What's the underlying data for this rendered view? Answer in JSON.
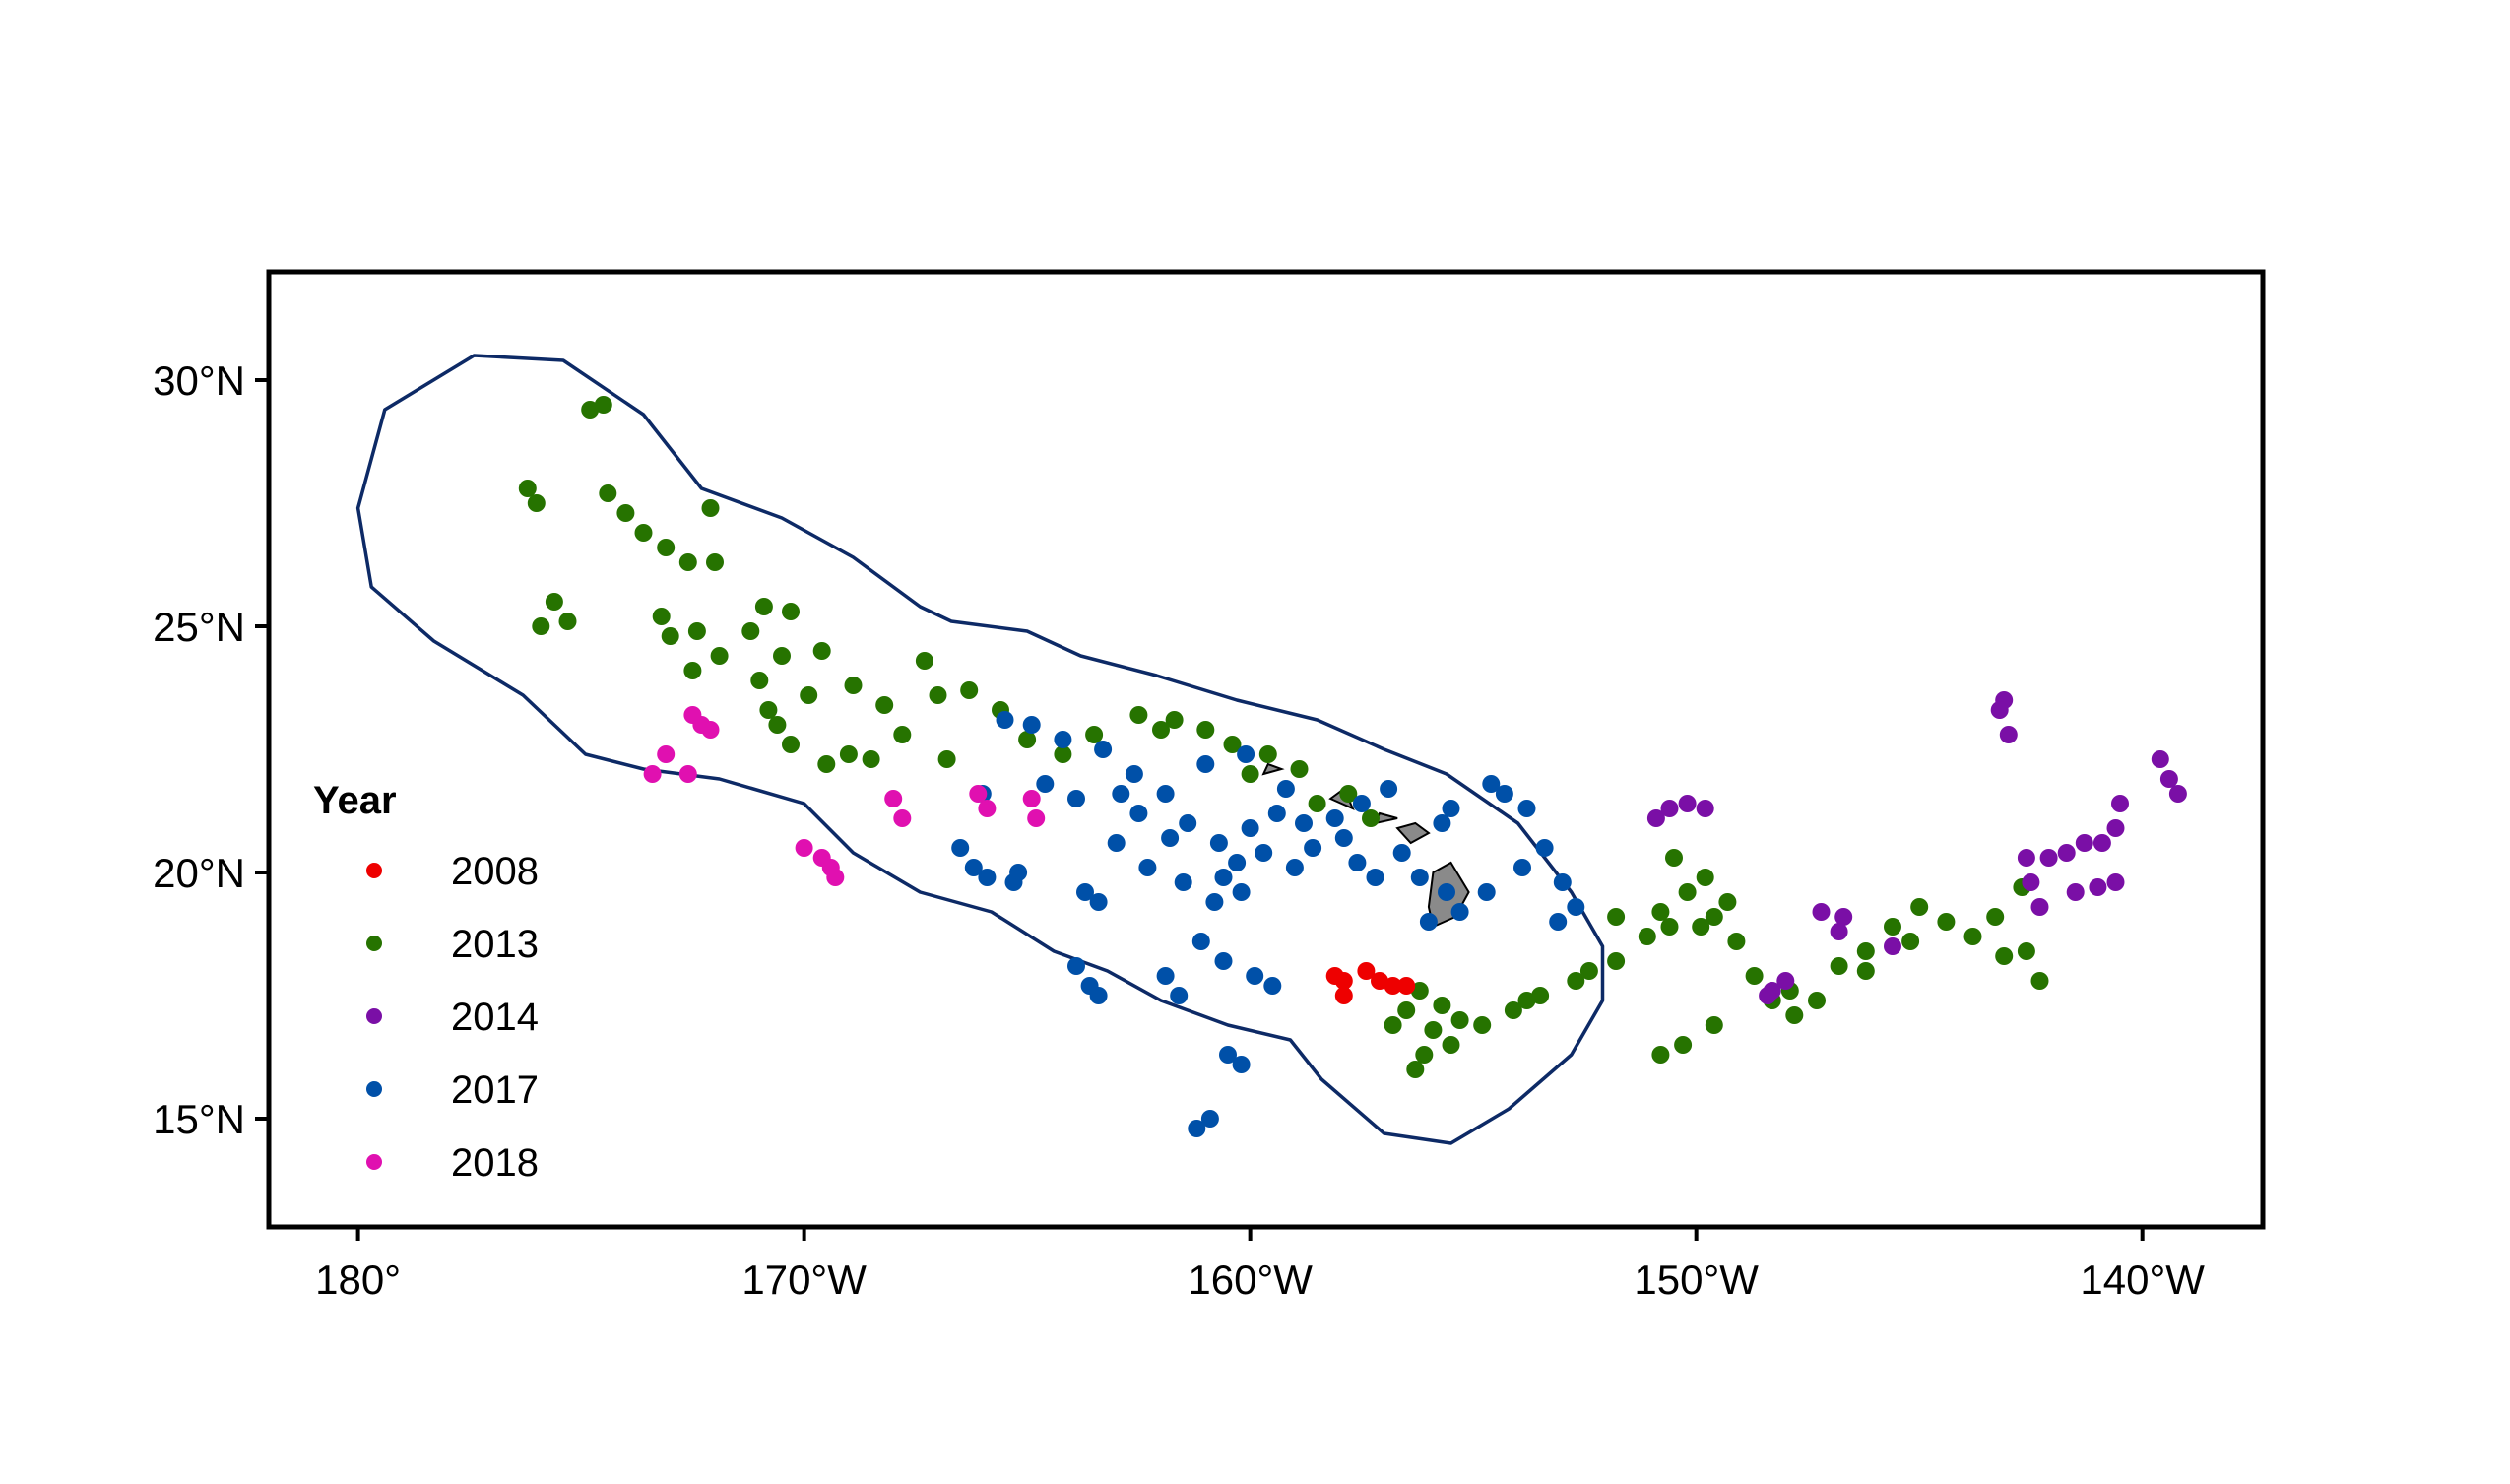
{
  "chart_data": {
    "type": "scatter",
    "x_ticks": [
      "180°",
      "170°W",
      "160°W",
      "150°W",
      "140°W"
    ],
    "x_tick_values": [
      -180,
      -170,
      -160,
      -150,
      -140
    ],
    "y_ticks": [
      "30°N",
      "25°N",
      "20°N",
      "15°N"
    ],
    "y_tick_values": [
      30,
      25,
      20,
      15
    ],
    "xlim": [
      -182,
      -137.3
    ],
    "ylim": [
      12.8,
      32.2
    ],
    "legend": {
      "title": "Year",
      "placement": "left"
    },
    "colors": {
      "2008": "#ee0000",
      "2013": "#267300",
      "2014": "#7a0fa6",
      "2017": "#0050a8",
      "2018": "#e010b0",
      "boundary": "#0d2a66",
      "island": "#8a8a8a"
    },
    "boundary": [
      [
        -180,
        27.4
      ],
      [
        -179.4,
        29.4
      ],
      [
        -177.4,
        30.5
      ],
      [
        -175.4,
        30.4
      ],
      [
        -173.6,
        29.3
      ],
      [
        -172.3,
        27.8
      ],
      [
        -170.5,
        27.2
      ],
      [
        -168.9,
        26.4
      ],
      [
        -167.4,
        25.4
      ],
      [
        -166.7,
        25.1
      ],
      [
        -165.0,
        24.9
      ],
      [
        -163.8,
        24.4
      ],
      [
        -162.1,
        24.0
      ],
      [
        -160.3,
        23.5
      ],
      [
        -158.5,
        23.1
      ],
      [
        -157.0,
        22.5
      ],
      [
        -155.6,
        22.0
      ],
      [
        -154.0,
        21.0
      ],
      [
        -152.8,
        19.6
      ],
      [
        -152.1,
        18.5
      ],
      [
        -152.1,
        17.4
      ],
      [
        -152.8,
        16.3
      ],
      [
        -154.2,
        15.2
      ],
      [
        -155.5,
        14.5
      ],
      [
        -157.0,
        14.7
      ],
      [
        -158.4,
        15.8
      ],
      [
        -159.1,
        16.6
      ],
      [
        -160.5,
        16.9
      ],
      [
        -162.0,
        17.4
      ],
      [
        -163.2,
        18.0
      ],
      [
        -164.4,
        18.4
      ],
      [
        -165.8,
        19.2
      ],
      [
        -167.4,
        19.6
      ],
      [
        -168.9,
        20.4
      ],
      [
        -170.0,
        21.4
      ],
      [
        -171.9,
        21.9
      ],
      [
        -173.6,
        22.1
      ],
      [
        -174.9,
        22.4
      ],
      [
        -176.3,
        23.6
      ],
      [
        -178.3,
        24.7
      ],
      [
        -179.7,
        25.8
      ],
      [
        -180,
        27.4
      ]
    ],
    "islands": [
      [
        [
          -155.9,
          18.9
        ],
        [
          -155.4,
          19.1
        ],
        [
          -155.1,
          19.6
        ],
        [
          -155.5,
          20.2
        ],
        [
          -155.9,
          20.0
        ],
        [
          -156.0,
          19.3
        ],
        [
          -155.9,
          18.9
        ]
      ],
      [
        [
          -156.4,
          20.6
        ],
        [
          -156.0,
          20.8
        ],
        [
          -156.3,
          21.0
        ],
        [
          -156.7,
          20.9
        ],
        [
          -156.4,
          20.6
        ]
      ],
      [
        [
          -157.2,
          21.0
        ],
        [
          -156.7,
          21.1
        ],
        [
          -157.1,
          21.2
        ],
        [
          -157.2,
          21.0
        ]
      ],
      [
        [
          -158.2,
          21.5
        ],
        [
          -157.7,
          21.3
        ],
        [
          -157.9,
          21.7
        ],
        [
          -158.2,
          21.5
        ]
      ],
      [
        [
          -159.7,
          22.0
        ],
        [
          -159.3,
          22.1
        ],
        [
          -159.6,
          22.2
        ],
        [
          -159.7,
          22.0
        ]
      ]
    ],
    "series": [
      {
        "name": "2008",
        "points": [
          [
            -157.9,
            17.8
          ],
          [
            -157.9,
            17.5
          ],
          [
            -157.4,
            18.0
          ],
          [
            -157.1,
            17.8
          ],
          [
            -156.8,
            17.7
          ],
          [
            -156.5,
            17.7
          ],
          [
            -158.1,
            17.9
          ]
        ]
      },
      {
        "name": "2013",
        "points": [
          [
            -174.8,
            29.4
          ],
          [
            -174.5,
            29.5
          ],
          [
            -176.2,
            27.8
          ],
          [
            -176.0,
            27.5
          ],
          [
            -174.4,
            27.7
          ],
          [
            -174.0,
            27.3
          ],
          [
            -172.1,
            27.4
          ],
          [
            -173.1,
            26.6
          ],
          [
            -172.6,
            26.3
          ],
          [
            -172.0,
            26.3
          ],
          [
            -173.2,
            25.2
          ],
          [
            -172.4,
            24.9
          ],
          [
            -171.9,
            24.4
          ],
          [
            -170.9,
            25.4
          ],
          [
            -170.3,
            25.3
          ],
          [
            -170.5,
            24.4
          ],
          [
            -171.0,
            23.9
          ],
          [
            -170.8,
            23.3
          ],
          [
            -170.3,
            22.6
          ],
          [
            -169.5,
            22.2
          ],
          [
            -169.0,
            22.4
          ],
          [
            -168.5,
            22.3
          ],
          [
            -167.8,
            22.8
          ],
          [
            -167.0,
            23.6
          ],
          [
            -166.3,
            23.7
          ],
          [
            -165.6,
            23.3
          ],
          [
            -165.0,
            22.7
          ],
          [
            -164.2,
            22.4
          ],
          [
            -163.5,
            22.8
          ],
          [
            -162.5,
            23.2
          ],
          [
            -161.7,
            23.1
          ],
          [
            -161.0,
            22.9
          ],
          [
            -160.4,
            22.6
          ],
          [
            -159.6,
            22.4
          ],
          [
            -158.9,
            22.1
          ],
          [
            -158.5,
            21.4
          ],
          [
            -157.8,
            21.6
          ],
          [
            -157.3,
            21.1
          ],
          [
            -175.9,
            25.0
          ],
          [
            -175.6,
            25.5
          ],
          [
            -173.0,
            24.8
          ],
          [
            -168.9,
            23.8
          ],
          [
            -168.2,
            23.4
          ],
          [
            -167.3,
            24.3
          ],
          [
            -169.6,
            24.5
          ],
          [
            -170.6,
            23.0
          ],
          [
            -169.9,
            23.6
          ],
          [
            -166.8,
            22.3
          ],
          [
            -156.1,
            16.3
          ],
          [
            -155.9,
            16.8
          ],
          [
            -156.5,
            17.2
          ],
          [
            -156.8,
            16.9
          ],
          [
            -155.7,
            17.3
          ],
          [
            -154.8,
            16.9
          ],
          [
            -154.1,
            17.2
          ],
          [
            -153.5,
            17.5
          ],
          [
            -152.7,
            17.8
          ],
          [
            -151.8,
            18.2
          ],
          [
            -151.1,
            18.7
          ],
          [
            -150.8,
            19.2
          ],
          [
            -150.2,
            19.6
          ],
          [
            -150.5,
            20.3
          ],
          [
            -149.8,
            19.9
          ],
          [
            -149.3,
            19.4
          ],
          [
            -149.9,
            18.9
          ],
          [
            -149.1,
            18.6
          ],
          [
            -148.7,
            17.9
          ],
          [
            -148.3,
            17.4
          ],
          [
            -147.8,
            17.1
          ],
          [
            -147.3,
            17.4
          ],
          [
            -146.8,
            18.1
          ],
          [
            -146.2,
            18.4
          ],
          [
            -145.6,
            18.9
          ],
          [
            -145.0,
            19.3
          ],
          [
            -144.4,
            19.0
          ],
          [
            -143.8,
            18.7
          ],
          [
            -143.3,
            19.1
          ],
          [
            -142.7,
            19.7
          ],
          [
            -142.3,
            17.8
          ],
          [
            -142.6,
            18.4
          ],
          [
            -143.1,
            18.3
          ],
          [
            -150.3,
            16.5
          ],
          [
            -150.8,
            16.3
          ],
          [
            -149.6,
            16.9
          ],
          [
            -151.8,
            19.1
          ],
          [
            -150.6,
            18.9
          ],
          [
            -156.2,
            17.6
          ],
          [
            -155.5,
            16.5
          ],
          [
            -156.3,
            16.0
          ],
          [
            -155.3,
            17.0
          ],
          [
            -152.4,
            18.0
          ],
          [
            -153.8,
            17.4
          ],
          [
            -149.6,
            19.1
          ],
          [
            -146.2,
            18.0
          ],
          [
            -145.2,
            18.6
          ],
          [
            -147.9,
            17.6
          ],
          [
            -172.5,
            24.1
          ],
          [
            -173.6,
            26.9
          ],
          [
            -175.3,
            25.1
          ],
          [
            -171.2,
            24.9
          ],
          [
            -162.0,
            22.9
          ],
          [
            -160.0,
            22.0
          ]
        ]
      },
      {
        "name": "2014",
        "points": [
          [
            -143.1,
            23.5
          ],
          [
            -143.2,
            23.3
          ],
          [
            -143.0,
            22.8
          ],
          [
            -139.6,
            22.3
          ],
          [
            -139.4,
            21.9
          ],
          [
            -139.2,
            21.6
          ],
          [
            -140.5,
            21.4
          ],
          [
            -140.6,
            20.9
          ],
          [
            -140.9,
            20.6
          ],
          [
            -141.3,
            20.6
          ],
          [
            -141.7,
            20.4
          ],
          [
            -142.1,
            20.3
          ],
          [
            -142.6,
            20.3
          ],
          [
            -142.5,
            19.8
          ],
          [
            -142.3,
            19.3
          ],
          [
            -141.0,
            19.7
          ],
          [
            -140.6,
            19.8
          ],
          [
            -141.5,
            19.6
          ],
          [
            -150.6,
            21.3
          ],
          [
            -150.2,
            21.4
          ],
          [
            -149.8,
            21.3
          ],
          [
            -150.9,
            21.1
          ],
          [
            -147.2,
            19.2
          ],
          [
            -146.7,
            19.1
          ],
          [
            -146.8,
            18.8
          ],
          [
            -145.6,
            18.5
          ],
          [
            -148.3,
            17.6
          ],
          [
            -148.0,
            17.8
          ],
          [
            -148.4,
            17.5
          ]
        ]
      },
      {
        "name": "2017",
        "points": [
          [
            -166.5,
            20.5
          ],
          [
            -166.2,
            20.1
          ],
          [
            -165.9,
            19.9
          ],
          [
            -165.3,
            19.8
          ],
          [
            -165.2,
            20.0
          ],
          [
            -163.7,
            19.6
          ],
          [
            -163.4,
            19.4
          ],
          [
            -163.9,
            18.1
          ],
          [
            -163.6,
            17.7
          ],
          [
            -163.4,
            17.5
          ],
          [
            -161.9,
            17.9
          ],
          [
            -161.6,
            17.5
          ],
          [
            -161.1,
            18.6
          ],
          [
            -160.6,
            18.2
          ],
          [
            -159.9,
            17.9
          ],
          [
            -159.5,
            17.7
          ],
          [
            -160.5,
            16.3
          ],
          [
            -160.2,
            16.1
          ],
          [
            -160.9,
            15.0
          ],
          [
            -161.2,
            14.8
          ],
          [
            -162.3,
            20.1
          ],
          [
            -161.5,
            19.8
          ],
          [
            -160.3,
            20.2
          ],
          [
            -160.7,
            20.6
          ],
          [
            -161.4,
            21.0
          ],
          [
            -161.9,
            21.6
          ],
          [
            -162.6,
            22.0
          ],
          [
            -163.3,
            22.5
          ],
          [
            -164.2,
            22.7
          ],
          [
            -164.9,
            23.0
          ],
          [
            -165.5,
            23.1
          ],
          [
            -164.6,
            21.8
          ],
          [
            -163.9,
            21.5
          ],
          [
            -162.5,
            21.2
          ],
          [
            -159.0,
            20.1
          ],
          [
            -158.6,
            20.5
          ],
          [
            -158.1,
            21.1
          ],
          [
            -157.5,
            21.4
          ],
          [
            -156.9,
            21.7
          ],
          [
            -157.9,
            20.7
          ],
          [
            -157.6,
            20.2
          ],
          [
            -157.2,
            19.9
          ],
          [
            -156.6,
            20.4
          ],
          [
            -156.2,
            19.9
          ],
          [
            -155.6,
            19.6
          ],
          [
            -155.3,
            19.2
          ],
          [
            -154.7,
            19.6
          ],
          [
            -154.3,
            21.6
          ],
          [
            -154.6,
            21.8
          ],
          [
            -153.8,
            21.3
          ],
          [
            -153.4,
            20.5
          ],
          [
            -153.9,
            20.1
          ],
          [
            -153.0,
            19.8
          ],
          [
            -152.7,
            19.3
          ],
          [
            -153.1,
            19.0
          ],
          [
            -155.5,
            21.3
          ],
          [
            -155.7,
            21.0
          ],
          [
            -159.7,
            20.4
          ],
          [
            -160.0,
            20.9
          ],
          [
            -160.2,
            19.6
          ],
          [
            -160.6,
            19.9
          ],
          [
            -159.4,
            21.2
          ],
          [
            -159.2,
            21.7
          ],
          [
            -160.1,
            22.4
          ],
          [
            -161.0,
            22.2
          ],
          [
            -162.9,
            21.6
          ],
          [
            -166.0,
            21.6
          ],
          [
            -163.0,
            20.6
          ],
          [
            -158.8,
            21.0
          ],
          [
            -156.0,
            19.0
          ],
          [
            -161.8,
            20.7
          ],
          [
            -160.8,
            19.4
          ]
        ]
      },
      {
        "name": "2018",
        "points": [
          [
            -173.4,
            22.0
          ],
          [
            -173.1,
            22.4
          ],
          [
            -172.6,
            22.0
          ],
          [
            -172.5,
            23.2
          ],
          [
            -172.1,
            22.9
          ],
          [
            -170.0,
            20.5
          ],
          [
            -169.6,
            20.3
          ],
          [
            -169.3,
            19.9
          ],
          [
            -168.0,
            21.5
          ],
          [
            -167.8,
            21.1
          ],
          [
            -166.1,
            21.6
          ],
          [
            -165.9,
            21.3
          ],
          [
            -164.9,
            21.5
          ],
          [
            -164.8,
            21.1
          ],
          [
            -172.3,
            23.0
          ],
          [
            -169.4,
            20.1
          ]
        ]
      }
    ],
    "series_order": [
      "2008",
      "2013",
      "2014",
      "2017",
      "2018"
    ]
  }
}
